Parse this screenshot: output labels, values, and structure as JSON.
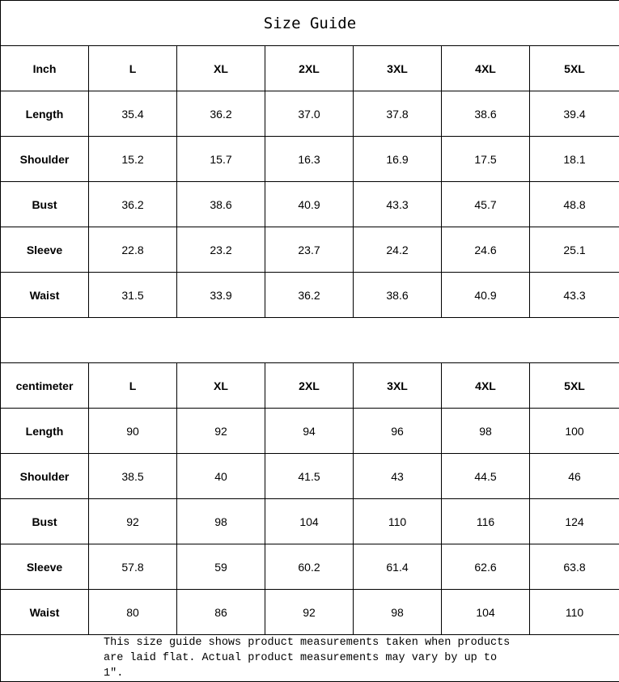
{
  "title": "Size Guide",
  "tables": [
    {
      "unit": "Inch",
      "sizes": [
        "L",
        "XL",
        "2XL",
        "3XL",
        "4XL",
        "5XL"
      ],
      "rows": [
        {
          "label": "Length",
          "values": [
            "35.4",
            "36.2",
            "37.0",
            "37.8",
            "38.6",
            "39.4"
          ]
        },
        {
          "label": "Shoulder",
          "values": [
            "15.2",
            "15.7",
            "16.3",
            "16.9",
            "17.5",
            "18.1"
          ]
        },
        {
          "label": "Bust",
          "values": [
            "36.2",
            "38.6",
            "40.9",
            "43.3",
            "45.7",
            "48.8"
          ]
        },
        {
          "label": "Sleeve",
          "values": [
            "22.8",
            "23.2",
            "23.7",
            "24.2",
            "24.6",
            "25.1"
          ]
        },
        {
          "label": "Waist",
          "values": [
            "31.5",
            "33.9",
            "36.2",
            "38.6",
            "40.9",
            "43.3"
          ]
        }
      ]
    },
    {
      "unit": "centimeter",
      "sizes": [
        "L",
        "XL",
        "2XL",
        "3XL",
        "4XL",
        "5XL"
      ],
      "rows": [
        {
          "label": "Length",
          "values": [
            "90",
            "92",
            "94",
            "96",
            "98",
            "100"
          ]
        },
        {
          "label": "Shoulder",
          "values": [
            "38.5",
            "40",
            "41.5",
            "43",
            "44.5",
            "46"
          ]
        },
        {
          "label": "Bust",
          "values": [
            "92",
            "98",
            "104",
            "110",
            "116",
            "124"
          ]
        },
        {
          "label": "Sleeve",
          "values": [
            "57.8",
            "59",
            "60.2",
            "61.4",
            "62.6",
            "63.8"
          ]
        },
        {
          "label": "Waist",
          "values": [
            "80",
            "86",
            "92",
            "98",
            "104",
            "110"
          ]
        }
      ]
    }
  ],
  "note": {
    "line1": "This size guide shows product measurements taken when products",
    "line2": "are laid flat. Actual product measurements may vary by up to 1″."
  }
}
